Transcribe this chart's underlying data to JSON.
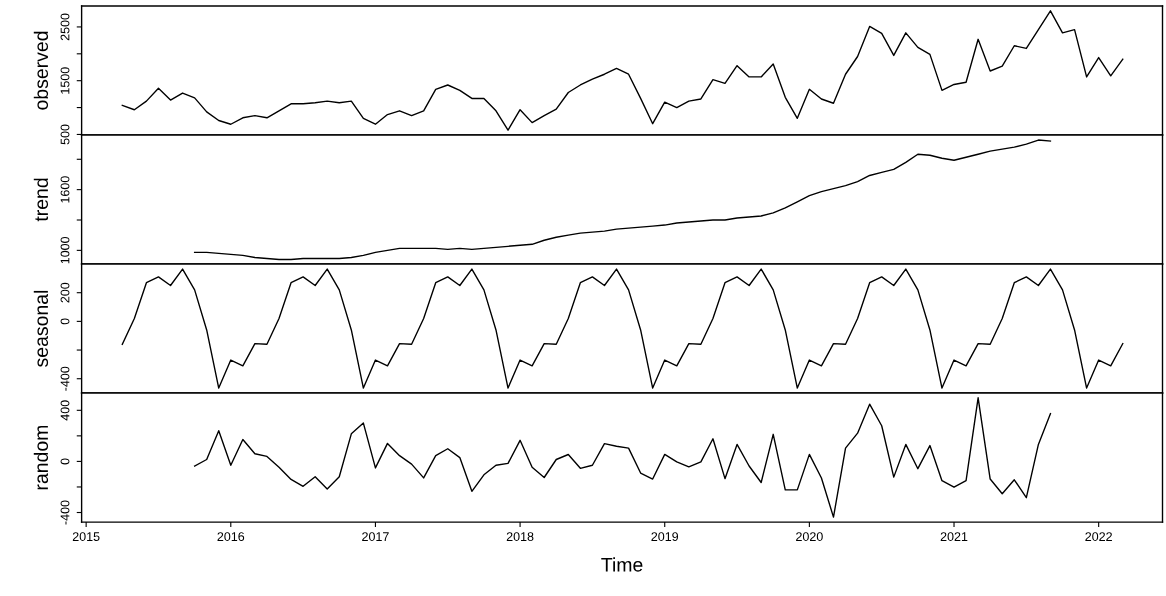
{
  "chart_data": [
    {
      "type": "line",
      "ylabel": "observed",
      "xlim": [
        "2014-12-20",
        "2022-06-10"
      ],
      "tick_labels": "y",
      "ylim": [
        490,
        2890
      ],
      "yticks": [
        500,
        {
          "value": 1000,
          "label": null
        },
        1500,
        {
          "value": 2000,
          "label": null
        },
        2500
      ],
      "x": [
        "2015-04",
        "2015-05",
        "2015-06",
        "2015-07",
        "2015-08",
        "2015-09",
        "2015-10",
        "2015-11",
        "2015-12",
        "2016-01",
        "2016-02",
        "2016-03",
        "2016-04",
        "2016-05",
        "2016-06",
        "2016-07",
        "2016-08",
        "2016-09",
        "2016-10",
        "2016-11",
        "2016-12",
        "2017-01",
        "2017-02",
        "2017-03",
        "2017-04",
        "2017-05",
        "2017-06",
        "2017-07",
        "2017-08",
        "2017-09",
        "2017-10",
        "2017-11",
        "2017-12",
        "2018-01",
        "2018-02",
        "2018-03",
        "2018-04",
        "2018-05",
        "2018-06",
        "2018-07",
        "2018-08",
        "2018-09",
        "2018-10",
        "2018-11",
        "2018-12",
        "2019-01",
        "2019-02",
        "2019-03",
        "2019-04",
        "2019-05",
        "2019-06",
        "2019-07",
        "2019-08",
        "2019-09",
        "2019-10",
        "2019-11",
        "2019-12",
        "2020-01",
        "2020-02",
        "2020-03",
        "2020-04",
        "2020-05",
        "2020-06",
        "2020-07",
        "2020-08",
        "2020-09",
        "2020-10",
        "2020-11",
        "2020-12",
        "2021-01",
        "2021-02",
        "2021-03",
        "2021-04",
        "2021-05",
        "2021-06",
        "2021-07",
        "2021-08",
        "2021-09",
        "2021-10",
        "2021-11",
        "2021-12",
        "2022-01",
        "2022-02",
        "2022-03"
      ],
      "series": [
        {
          "color": "#000000",
          "values": [
            1040,
            960,
            1120,
            1360,
            1140,
            1270,
            1180,
            920,
            760,
            690,
            810,
            850,
            810,
            940,
            1070,
            1070,
            1090,
            1120,
            1090,
            1120,
            800,
            690,
            870,
            940,
            850,
            940,
            1340,
            1420,
            1320,
            1170,
            1170,
            940,
            580,
            960,
            720,
            850,
            970,
            1280,
            1420,
            1530,
            1620,
            1730,
            1620,
            1170,
            700,
            1100,
            1000,
            1120,
            1160,
            1520,
            1450,
            1780,
            1570,
            1570,
            1810,
            1190,
            800,
            1340,
            1160,
            1080,
            1620,
            1950,
            2510,
            2380,
            1970,
            2390,
            2120,
            1990,
            1320,
            1430,
            1470,
            2270,
            1680,
            1770,
            2150,
            2100,
            2450,
            2800,
            2390,
            2450,
            1570,
            1930,
            1590,
            1900
          ]
        }
      ]
    },
    {
      "type": "line",
      "ylabel": "trend",
      "xlim": [
        "2014-12-20",
        "2022-06-10"
      ],
      "tick_labels": "y",
      "ylim": [
        865,
        2140
      ],
      "yticks": [
        1000,
        {
          "value": 1300,
          "label": null
        },
        1600,
        {
          "value": 1900,
          "label": null
        }
      ],
      "x": [
        "2015-10",
        "2015-11",
        "2015-12",
        "2016-01",
        "2016-02",
        "2016-03",
        "2016-04",
        "2016-05",
        "2016-06",
        "2016-07",
        "2016-08",
        "2016-09",
        "2016-10",
        "2016-11",
        "2016-12",
        "2017-01",
        "2017-02",
        "2017-03",
        "2017-04",
        "2017-05",
        "2017-06",
        "2017-07",
        "2017-08",
        "2017-09",
        "2017-10",
        "2017-11",
        "2017-12",
        "2018-01",
        "2018-02",
        "2018-03",
        "2018-04",
        "2018-05",
        "2018-06",
        "2018-07",
        "2018-08",
        "2018-09",
        "2018-10",
        "2018-11",
        "2018-12",
        "2019-01",
        "2019-02",
        "2019-03",
        "2019-04",
        "2019-05",
        "2019-06",
        "2019-07",
        "2019-08",
        "2019-09",
        "2019-10",
        "2019-11",
        "2019-12",
        "2020-01",
        "2020-02",
        "2020-03",
        "2020-04",
        "2020-05",
        "2020-06",
        "2020-07",
        "2020-08",
        "2020-09",
        "2020-10",
        "2020-11",
        "2020-12",
        "2021-01",
        "2021-02",
        "2021-03",
        "2021-04",
        "2021-05",
        "2021-06",
        "2021-07",
        "2021-08",
        "2021-09"
      ],
      "series": [
        {
          "color": "#000000",
          "values": [
            980,
            980,
            970,
            960,
            950,
            930,
            920,
            910,
            910,
            920,
            920,
            920,
            920,
            930,
            950,
            980,
            1000,
            1020,
            1020,
            1020,
            1020,
            1010,
            1020,
            1010,
            1020,
            1030,
            1040,
            1050,
            1060,
            1100,
            1130,
            1150,
            1170,
            1180,
            1190,
            1210,
            1220,
            1230,
            1240,
            1250,
            1270,
            1280,
            1290,
            1300,
            1300,
            1320,
            1330,
            1340,
            1370,
            1420,
            1480,
            1540,
            1580,
            1610,
            1640,
            1680,
            1740,
            1770,
            1800,
            1870,
            1950,
            1940,
            1910,
            1890,
            1920,
            1950,
            1980,
            2000,
            2020,
            2050,
            2090,
            2080
          ]
        }
      ]
    },
    {
      "type": "line",
      "ylabel": "seasonal",
      "xlim": [
        "2014-12-20",
        "2022-06-10"
      ],
      "tick_labels": "y",
      "ylim": [
        -500,
        400
      ],
      "yticks": [
        -400,
        {
          "value": -200,
          "label": null
        },
        0,
        200
      ],
      "x": [
        "2015-04",
        "2015-05",
        "2015-06",
        "2015-07",
        "2015-08",
        "2015-09",
        "2015-10",
        "2015-11",
        "2015-12",
        "2016-01",
        "2016-02",
        "2016-03",
        "2016-04",
        "2016-05",
        "2016-06",
        "2016-07",
        "2016-08",
        "2016-09",
        "2016-10",
        "2016-11",
        "2016-12",
        "2017-01",
        "2017-02",
        "2017-03",
        "2017-04",
        "2017-05",
        "2017-06",
        "2017-07",
        "2017-08",
        "2017-09",
        "2017-10",
        "2017-11",
        "2017-12",
        "2018-01",
        "2018-02",
        "2018-03",
        "2018-04",
        "2018-05",
        "2018-06",
        "2018-07",
        "2018-08",
        "2018-09",
        "2018-10",
        "2018-11",
        "2018-12",
        "2019-01",
        "2019-02",
        "2019-03",
        "2019-04",
        "2019-05",
        "2019-06",
        "2019-07",
        "2019-08",
        "2019-09",
        "2019-10",
        "2019-11",
        "2019-12",
        "2020-01",
        "2020-02",
        "2020-03",
        "2020-04",
        "2020-05",
        "2020-06",
        "2020-07",
        "2020-08",
        "2020-09",
        "2020-10",
        "2020-11",
        "2020-12",
        "2021-01",
        "2021-02",
        "2021-03",
        "2021-04",
        "2021-05",
        "2021-06",
        "2021-07",
        "2021-08",
        "2021-09",
        "2021-10",
        "2021-11",
        "2021-12",
        "2022-01",
        "2022-02",
        "2022-03"
      ],
      "series": [
        {
          "color": "#000000",
          "values": [
            -160,
            20,
            270,
            310,
            250,
            365,
            220,
            -60,
            -465,
            -270,
            -310,
            -155,
            -160,
            20,
            270,
            310,
            250,
            365,
            220,
            -60,
            -465,
            -270,
            -310,
            -155,
            -160,
            20,
            270,
            310,
            250,
            365,
            220,
            -60,
            -465,
            -270,
            -310,
            -155,
            -160,
            20,
            270,
            310,
            250,
            365,
            220,
            -60,
            -465,
            -270,
            -310,
            -155,
            -160,
            20,
            270,
            310,
            250,
            365,
            220,
            -60,
            -465,
            -270,
            -310,
            -155,
            -160,
            20,
            270,
            310,
            250,
            365,
            220,
            -60,
            -465,
            -270,
            -310,
            -155,
            -160,
            20,
            270,
            310,
            250,
            365,
            220,
            -60,
            -465,
            -270,
            -310,
            -155
          ]
        }
      ]
    },
    {
      "type": "line",
      "ylabel": "random",
      "xlabel": "Time",
      "xlim": [
        "2014-12-20",
        "2022-06-10"
      ],
      "xticks": [
        "2015",
        "2016",
        "2017",
        "2018",
        "2019",
        "2020",
        "2021",
        "2022"
      ],
      "ylim": [
        -475,
        535
      ],
      "yticks": [
        -400,
        {
          "value": -200,
          "label": null
        },
        0,
        {
          "value": 200,
          "label": null
        },
        400
      ],
      "x": [
        "2015-10",
        "2015-11",
        "2015-12",
        "2016-01",
        "2016-02",
        "2016-03",
        "2016-04",
        "2016-05",
        "2016-06",
        "2016-07",
        "2016-08",
        "2016-09",
        "2016-10",
        "2016-11",
        "2016-12",
        "2017-01",
        "2017-02",
        "2017-03",
        "2017-04",
        "2017-05",
        "2017-06",
        "2017-07",
        "2017-08",
        "2017-09",
        "2017-10",
        "2017-11",
        "2017-12",
        "2018-01",
        "2018-02",
        "2018-03",
        "2018-04",
        "2018-05",
        "2018-06",
        "2018-07",
        "2018-08",
        "2018-09",
        "2018-10",
        "2018-11",
        "2018-12",
        "2019-01",
        "2019-02",
        "2019-03",
        "2019-04",
        "2019-05",
        "2019-06",
        "2019-07",
        "2019-08",
        "2019-09",
        "2019-10",
        "2019-11",
        "2019-12",
        "2020-01",
        "2020-02",
        "2020-03",
        "2020-04",
        "2020-05",
        "2020-06",
        "2020-07",
        "2020-08",
        "2020-09",
        "2020-10",
        "2020-11",
        "2020-12",
        "2021-01",
        "2021-02",
        "2021-03",
        "2021-04",
        "2021-05",
        "2021-06",
        "2021-07",
        "2021-08",
        "2021-09"
      ],
      "series": [
        {
          "color": "#000000",
          "values": [
            -36,
            15,
            240,
            -30,
            171,
            60,
            39,
            -45,
            -141,
            -195,
            -120,
            -216,
            -120,
            216,
            300,
            -51,
            141,
            45,
            -21,
            -129,
            45,
            99,
            30,
            -234,
            -105,
            -30,
            -15,
            165,
            -45,
            -126,
            15,
            54,
            -54,
            -30,
            139,
            119,
            104,
            -91,
            -138,
            55,
            -4,
            -42,
            -4,
            177,
            -135,
            133,
            -36,
            -165,
            212,
            -223,
            -223,
            55,
            -130,
            -436,
            104,
            221,
            448,
            279,
            -123,
            133,
            -57,
            124,
            -151,
            -202,
            -151,
            498,
            -138,
            -253,
            -144,
            -284,
            133,
            373
          ]
        }
      ]
    }
  ]
}
